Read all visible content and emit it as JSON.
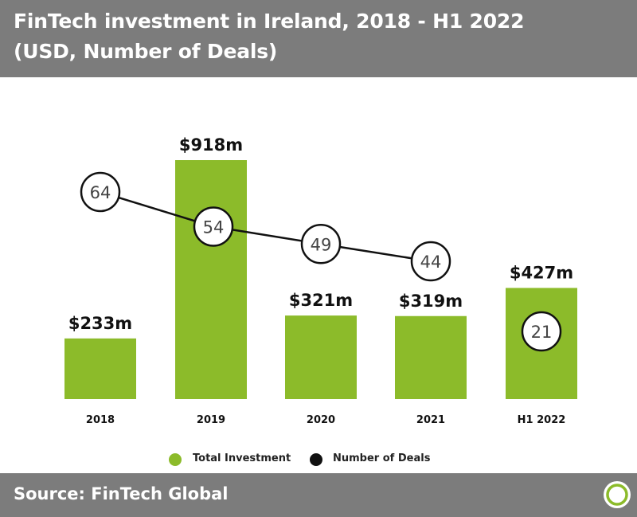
{
  "header": {
    "title_line1": "FinTech investment in Ireland, 2018 - H1 2022",
    "title_line2": "(USD, Number of Deals)"
  },
  "footer": {
    "source": "Source: FinTech Global",
    "logo_icon": "fintech-global-ring-icon"
  },
  "colors": {
    "header_bg": "#7c7c7c",
    "bar": "#8cbb2a",
    "line": "#111111",
    "text": "#111111"
  },
  "legend": {
    "items": [
      {
        "label": "Total Investment",
        "color": "#8cbb2a"
      },
      {
        "label": "Number of Deals",
        "color": "#111111"
      }
    ]
  },
  "chart_data": {
    "type": "bar",
    "categories": [
      "2018",
      "2019",
      "2020",
      "2021",
      "H1 2022"
    ],
    "series": [
      {
        "name": "Total Investment",
        "type": "bar",
        "values": [
          233,
          918,
          321,
          319,
          427
        ],
        "labels": [
          "$233m",
          "$918m",
          "$321m",
          "$319m",
          "$427m"
        ]
      },
      {
        "name": "Number of Deals",
        "type": "line",
        "values": [
          64,
          54,
          49,
          44,
          21
        ]
      }
    ],
    "title": "FinTech investment in Ireland, 2018 - H1 2022",
    "subtitle": "(USD, Number of Deals)",
    "legend_position": "bottom",
    "grid": false
  }
}
